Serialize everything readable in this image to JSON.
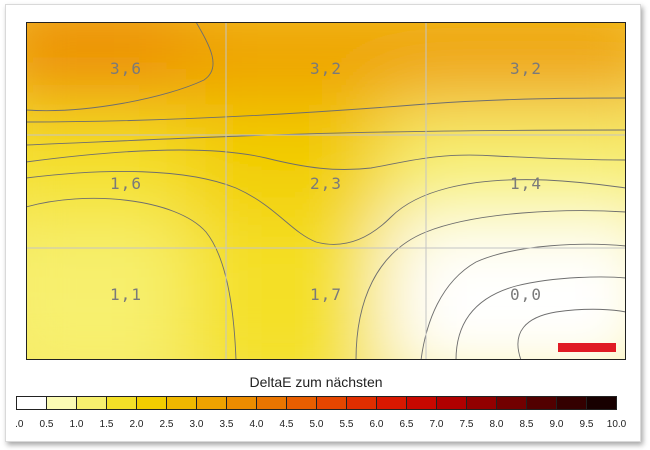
{
  "chart_data": {
    "type": "heatmap",
    "title": "",
    "rows": 3,
    "cols": 3,
    "cell_values": [
      [
        "3,6",
        "3,2",
        "3,2"
      ],
      [
        "1,6",
        "2,3",
        "1,4"
      ],
      [
        "1,1",
        "1,7",
        "0,0"
      ]
    ],
    "values": [
      [
        3.6,
        3.2,
        3.2
      ],
      [
        1.6,
        2.3,
        1.4
      ],
      [
        1.1,
        1.7,
        0.0
      ]
    ],
    "color_scale": {
      "label": "DeltaE zum nächsten",
      "min": 0.0,
      "max": 10.0,
      "step": 0.5,
      "ticks": [
        "0.0",
        "0.5",
        "1.0",
        "1.5",
        "2.0",
        "2.5",
        "3.0",
        "3.5",
        "4.0",
        "4.5",
        "5.0",
        "5.5",
        "6.0",
        "6.5",
        "7.0",
        "7.5",
        "8.0",
        "8.5",
        "9.0",
        "9.5",
        "10.0"
      ],
      "colors": [
        "#ffffff",
        "#fbfbb4",
        "#f7f06e",
        "#f4e028",
        "#f2cd00",
        "#f0b800",
        "#eea200",
        "#ec8c00",
        "#ea7500",
        "#e85e00",
        "#e54600",
        "#e02e00",
        "#d81800",
        "#c80800",
        "#b00000",
        "#920000",
        "#720000",
        "#520000",
        "#340000",
        "#180000"
      ]
    },
    "grid": true,
    "marker_color": "#e01b24"
  }
}
